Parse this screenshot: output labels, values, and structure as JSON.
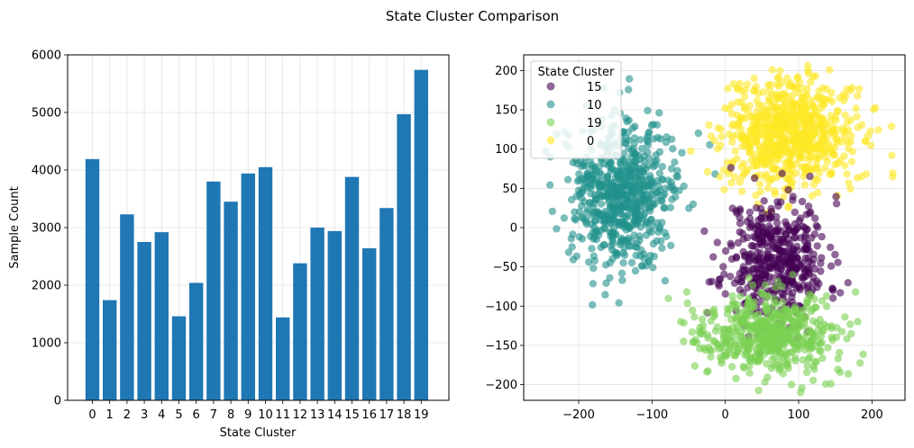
{
  "figure_title": "State Cluster Comparison",
  "chart_data": [
    {
      "type": "bar",
      "xlabel": "State Cluster",
      "ylabel": "Sample Count",
      "categories": [
        "0",
        "1",
        "2",
        "3",
        "4",
        "5",
        "6",
        "7",
        "8",
        "9",
        "10",
        "11",
        "12",
        "13",
        "14",
        "15",
        "16",
        "17",
        "18",
        "19"
      ],
      "values": [
        4190,
        1740,
        3230,
        2750,
        2920,
        1460,
        2040,
        3800,
        3450,
        3940,
        4050,
        1440,
        2380,
        3000,
        2940,
        3880,
        2640,
        3340,
        4970,
        5740
      ],
      "ylim": [
        0,
        6000
      ],
      "yticks": [
        0,
        1000,
        2000,
        3000,
        4000,
        5000,
        6000
      ],
      "grid": true,
      "color": "#1f77b4"
    },
    {
      "type": "scatter",
      "xlim": [
        -275,
        245
      ],
      "ylim": [
        -220,
        220
      ],
      "xticks": [
        -200,
        -100,
        0,
        100,
        200
      ],
      "yticks": [
        -200,
        -150,
        -100,
        -50,
        0,
        50,
        100,
        150,
        200
      ],
      "grid": true,
      "legend": {
        "title": "State Cluster",
        "placement": "upper-left",
        "entries": [
          {
            "label": "15",
            "color": "#440154"
          },
          {
            "label": "10",
            "color": "#21918c"
          },
          {
            "label": "19",
            "color": "#7ad151"
          },
          {
            "label": "0",
            "color": "#fde725"
          }
        ]
      },
      "series": [
        {
          "name": "10",
          "color": "#21918c",
          "center": [
            -140,
            40
          ],
          "spread": [
            35,
            45
          ],
          "count": 650,
          "seed": 3
        },
        {
          "name": "0",
          "color": "#fde725",
          "center": [
            88,
            118
          ],
          "spread": [
            45,
            35
          ],
          "count": 700,
          "seed": 7
        },
        {
          "name": "15",
          "color": "#440154",
          "center": [
            70,
            -40
          ],
          "spread": [
            35,
            40
          ],
          "count": 450,
          "seed": 11
        },
        {
          "name": "19",
          "color": "#7ad151",
          "center": [
            60,
            -135
          ],
          "spread": [
            45,
            25
          ],
          "count": 550,
          "seed": 17
        }
      ]
    }
  ]
}
